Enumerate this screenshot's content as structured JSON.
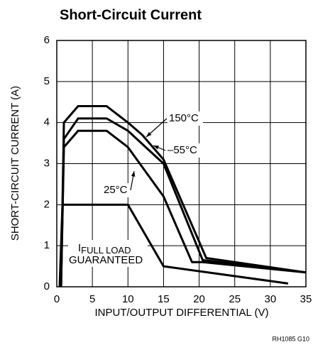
{
  "chart_data": {
    "type": "line",
    "title": "Short-Circuit Current",
    "xlabel": "INPUT/OUTPUT DIFFERENTIAL (V)",
    "ylabel": "SHORT-CIRCUIT CURRENT (A)",
    "footnote": "RH1085 G10",
    "xlim": [
      0,
      35
    ],
    "xticks": [
      0,
      5,
      10,
      15,
      20,
      25,
      30,
      35
    ],
    "ylim": [
      0,
      6
    ],
    "yticks": [
      0,
      1,
      2,
      3,
      4,
      5,
      6
    ],
    "grid": true,
    "series": [
      {
        "name": "150°C",
        "color": "#000000",
        "x": [
          0.6,
          1,
          3,
          7,
          10,
          12,
          15,
          21,
          35
        ],
        "values": [
          0,
          4.0,
          4.4,
          4.4,
          4.0,
          3.7,
          3.1,
          0.7,
          0.35
        ]
      },
      {
        "name": "–55°C",
        "color": "#000000",
        "x": [
          0.6,
          1,
          3,
          7,
          10,
          15,
          20.5,
          35
        ],
        "values": [
          0,
          3.6,
          4.1,
          4.1,
          3.8,
          3.0,
          0.65,
          0.35
        ]
      },
      {
        "name": "25°C",
        "color": "#000000",
        "x": [
          0.6,
          1,
          3,
          7,
          10,
          15,
          19,
          20.5,
          35
        ],
        "values": [
          0,
          3.4,
          3.8,
          3.8,
          3.4,
          2.2,
          0.6,
          0.6,
          0.35
        ]
      },
      {
        "color": "#000000",
        "x": [
          0.4,
          0.8,
          10,
          15,
          32.5
        ],
        "values": [
          0,
          2.0,
          2.0,
          0.5,
          0.08
        ]
      }
    ],
    "annotations": [
      "I",
      "FULL LOAD",
      "GUARANTEED"
    ]
  }
}
